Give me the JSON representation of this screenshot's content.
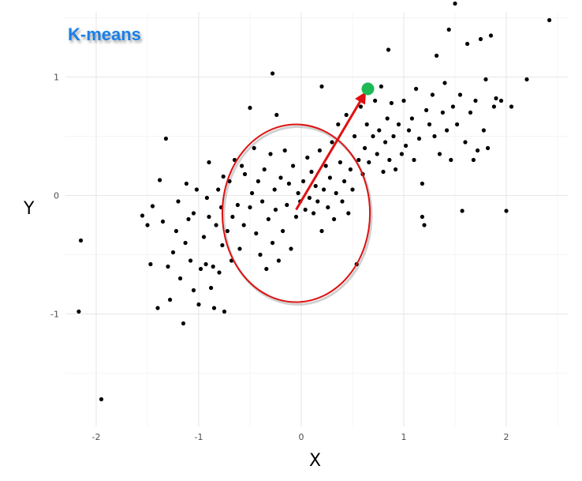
{
  "chart_data": {
    "type": "scatter",
    "title": "K-means",
    "xlabel": "X",
    "ylabel": "Y",
    "xlim": [
      -2.3,
      2.6
    ],
    "ylim": [
      -1.95,
      1.55
    ],
    "xticks": [
      -2,
      -1,
      0,
      1,
      2
    ],
    "yticks": [
      -1,
      0,
      1
    ],
    "xtick_labels": [
      "-2",
      "-1",
      "0",
      "1",
      "2"
    ],
    "ytick_labels": [
      "-1",
      "0",
      "1"
    ],
    "grid": true,
    "colors": {
      "points": "#000000",
      "centroid": "#1db954",
      "arrow": "#e01010",
      "circle": "#dd1111",
      "title": "#1a7fe6",
      "grid": "#ebebeb"
    },
    "centroid": {
      "x": 0.65,
      "y": 0.9
    },
    "arrow": {
      "from": [
        -0.05,
        -0.12
      ],
      "to": [
        0.62,
        0.86
      ]
    },
    "circle": {
      "cx": -0.05,
      "cy": -0.15,
      "rx": 0.72,
      "ry": 0.75
    },
    "points": [
      [
        -2.15,
        -0.38
      ],
      [
        -2.17,
        -0.98
      ],
      [
        -1.95,
        -1.72
      ],
      [
        -1.55,
        -0.17
      ],
      [
        -1.5,
        -0.25
      ],
      [
        -1.47,
        -0.58
      ],
      [
        -1.45,
        -0.09
      ],
      [
        -1.4,
        -0.95
      ],
      [
        -1.38,
        0.13
      ],
      [
        -1.35,
        -0.22
      ],
      [
        -1.32,
        0.48
      ],
      [
        -1.3,
        -0.6
      ],
      [
        -1.28,
        -0.88
      ],
      [
        -1.25,
        -0.48
      ],
      [
        -1.22,
        -0.3
      ],
      [
        -1.2,
        -0.05
      ],
      [
        -1.18,
        -0.7
      ],
      [
        -1.15,
        -1.08
      ],
      [
        -1.13,
        -0.4
      ],
      [
        -1.12,
        0.1
      ],
      [
        -1.1,
        -0.2
      ],
      [
        -1.08,
        -0.55
      ],
      [
        -1.05,
        -0.8
      ],
      [
        -1.05,
        -0.15
      ],
      [
        -1.02,
        0.05
      ],
      [
        -1.0,
        -0.92
      ],
      [
        -0.98,
        -0.62
      ],
      [
        -0.95,
        -0.35
      ],
      [
        -0.93,
        -0.58
      ],
      [
        -0.92,
        -0.02
      ],
      [
        -0.9,
        -0.18
      ],
      [
        -0.9,
        0.28
      ],
      [
        -0.88,
        -0.78
      ],
      [
        -0.86,
        -0.6
      ],
      [
        -0.85,
        -0.95
      ],
      [
        -0.83,
        -0.25
      ],
      [
        -0.81,
        0.05
      ],
      [
        -0.8,
        -0.65
      ],
      [
        -0.78,
        -0.1
      ],
      [
        -0.77,
        -0.42
      ],
      [
        -0.76,
        0.16
      ],
      [
        -0.75,
        -0.98
      ],
      [
        -0.72,
        -0.3
      ],
      [
        -0.7,
        0.12
      ],
      [
        -0.68,
        -0.55
      ],
      [
        -0.67,
        -0.18
      ],
      [
        -0.65,
        0.3
      ],
      [
        -0.62,
        -0.08
      ],
      [
        -0.6,
        -0.45
      ],
      [
        -0.58,
        0.25
      ],
      [
        -0.56,
        -0.25
      ],
      [
        -0.55,
        0.18
      ],
      [
        -0.5,
        -0.1
      ],
      [
        -0.48,
        0.02
      ],
      [
        -0.46,
        0.4
      ],
      [
        -0.44,
        -0.32
      ],
      [
        -0.42,
        0.12
      ],
      [
        -0.4,
        -0.5
      ],
      [
        -0.38,
        -0.05
      ],
      [
        -0.36,
        0.22
      ],
      [
        -0.34,
        -0.62
      ],
      [
        -0.32,
        -0.2
      ],
      [
        -0.3,
        0.35
      ],
      [
        -0.28,
        -0.4
      ],
      [
        -0.26,
        0.05
      ],
      [
        -0.25,
        -0.12
      ],
      [
        -0.24,
        0.68
      ],
      [
        -0.22,
        -0.55
      ],
      [
        -0.2,
        0.15
      ],
      [
        -0.18,
        -0.3
      ],
      [
        -0.16,
        0.38
      ],
      [
        -0.14,
        -0.08
      ],
      [
        -0.12,
        0.1
      ],
      [
        -0.1,
        -0.45
      ],
      [
        -0.08,
        0.25
      ],
      [
        -0.05,
        -0.18
      ],
      [
        -0.03,
        0.02
      ],
      [
        -0.01,
        -0.05
      ],
      [
        0.02,
        0.12
      ],
      [
        0.04,
        -0.12
      ],
      [
        0.06,
        0.32
      ],
      [
        0.08,
        -0.02
      ],
      [
        0.1,
        0.2
      ],
      [
        0.12,
        -0.15
      ],
      [
        0.14,
        0.08
      ],
      [
        0.16,
        -0.05
      ],
      [
        0.18,
        0.38
      ],
      [
        0.2,
        -0.3
      ],
      [
        0.22,
        0.05
      ],
      [
        0.24,
        0.25
      ],
      [
        0.26,
        -0.1
      ],
      [
        0.28,
        0.15
      ],
      [
        0.3,
        0.45
      ],
      [
        0.32,
        -0.2
      ],
      [
        0.34,
        0.02
      ],
      [
        0.36,
        0.6
      ],
      [
        0.38,
        0.28
      ],
      [
        0.4,
        -0.05
      ],
      [
        0.42,
        0.12
      ],
      [
        0.44,
        0.68
      ],
      [
        0.46,
        -0.15
      ],
      [
        0.48,
        0.22
      ],
      [
        0.5,
        0.05
      ],
      [
        0.52,
        0.5
      ],
      [
        0.54,
        -0.58
      ],
      [
        0.56,
        0.3
      ],
      [
        0.58,
        0.75
      ],
      [
        0.6,
        0.18
      ],
      [
        0.62,
        0.4
      ],
      [
        0.64,
        0.6
      ],
      [
        0.66,
        0.28
      ],
      [
        0.7,
        0.5
      ],
      [
        0.72,
        0.8
      ],
      [
        0.74,
        0.35
      ],
      [
        0.76,
        0.55
      ],
      [
        0.78,
        0.92
      ],
      [
        0.8,
        0.2
      ],
      [
        0.82,
        0.45
      ],
      [
        0.84,
        0.65
      ],
      [
        0.86,
        0.3
      ],
      [
        0.88,
        0.78
      ],
      [
        0.9,
        0.5
      ],
      [
        0.92,
        0.22
      ],
      [
        0.95,
        0.6
      ],
      [
        0.98,
        0.35
      ],
      [
        1.0,
        0.8
      ],
      [
        1.02,
        0.42
      ],
      [
        1.05,
        0.55
      ],
      [
        1.08,
        0.65
      ],
      [
        1.1,
        0.3
      ],
      [
        1.12,
        0.9
      ],
      [
        1.15,
        0.48
      ],
      [
        1.18,
        0.1
      ],
      [
        1.18,
        -0.18
      ],
      [
        1.2,
        -0.25
      ],
      [
        1.22,
        0.72
      ],
      [
        1.25,
        0.6
      ],
      [
        1.28,
        0.85
      ],
      [
        1.3,
        0.5
      ],
      [
        1.32,
        1.18
      ],
      [
        1.35,
        0.35
      ],
      [
        1.38,
        0.7
      ],
      [
        1.4,
        0.95
      ],
      [
        1.42,
        0.55
      ],
      [
        1.44,
        1.4
      ],
      [
        1.46,
        0.3
      ],
      [
        1.48,
        0.75
      ],
      [
        1.5,
        1.62
      ],
      [
        1.52,
        0.6
      ],
      [
        1.55,
        0.85
      ],
      [
        1.57,
        -0.13
      ],
      [
        1.6,
        0.45
      ],
      [
        1.62,
        1.28
      ],
      [
        1.65,
        0.7
      ],
      [
        1.68,
        0.3
      ],
      [
        1.7,
        0.8
      ],
      [
        1.72,
        0.38
      ],
      [
        1.75,
        1.32
      ],
      [
        1.78,
        0.55
      ],
      [
        1.8,
        0.98
      ],
      [
        1.82,
        0.4
      ],
      [
        1.85,
        1.35
      ],
      [
        1.88,
        0.75
      ],
      [
        1.9,
        0.82
      ],
      [
        1.95,
        0.8
      ],
      [
        2.0,
        -0.13
      ],
      [
        2.05,
        0.75
      ],
      [
        2.2,
        0.98
      ],
      [
        2.42,
        1.48
      ],
      [
        0.85,
        1.23
      ],
      [
        -0.28,
        1.03
      ],
      [
        -0.5,
        0.74
      ],
      [
        0.2,
        0.92
      ]
    ]
  }
}
